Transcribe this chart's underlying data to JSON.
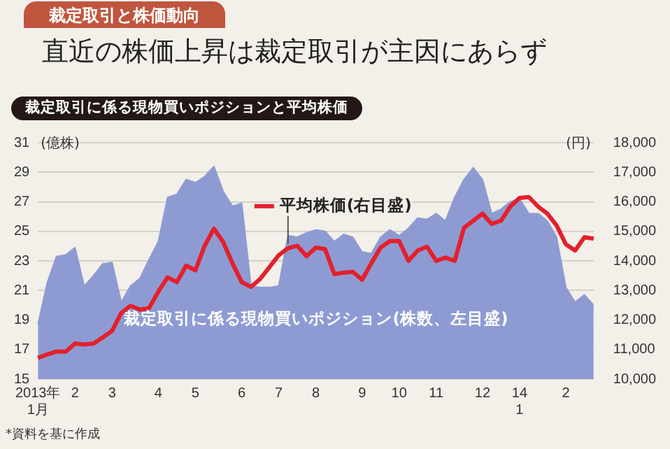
{
  "chart_data": {
    "type": "area",
    "title": "直近の株価上昇は裁定取引が主因にあらず",
    "subtitle": "裁定取引に係る現物買いポジションと平均株価",
    "ylabel": "(億株)",
    "y2label": "(円)",
    "annotations": [
      "裁定取引と株価動向",
      "*資料を基に作成"
    ],
    "categories": [
      "2013年\n1月",
      null,
      null,
      null,
      "2",
      null,
      null,
      null,
      "3",
      null,
      null,
      null,
      null,
      "4",
      null,
      null,
      null,
      "5",
      null,
      null,
      null,
      null,
      "6",
      null,
      null,
      null,
      "7",
      null,
      null,
      null,
      "8",
      null,
      null,
      null,
      null,
      "9",
      null,
      null,
      null,
      "10",
      null,
      null,
      null,
      "11",
      null,
      null,
      null,
      null,
      "12",
      null,
      null,
      null,
      "14\n1",
      null,
      null,
      null,
      null,
      "2",
      null,
      null,
      null
    ],
    "series": [
      {
        "name": "裁定取引に係る現物買いポジション(株数、左目盛)",
        "color": "#8e9bd3",
        "values": [
          18.7,
          21.5,
          23.3,
          23.4,
          23.9,
          21.3,
          22.0,
          22.8,
          22.9,
          20.2,
          21.3,
          21.8,
          23.1,
          24.3,
          27.3,
          27.5,
          28.5,
          28.3,
          28.7,
          29.4,
          27.7,
          26.7,
          26.9,
          21.3,
          21.2,
          21.2,
          21.3,
          24.7,
          24.6,
          24.9,
          25.1,
          25.0,
          24.3,
          24.8,
          24.6,
          23.6,
          23.5,
          24.6,
          25.1,
          24.7,
          25.2,
          25.9,
          25.8,
          26.2,
          25.7,
          27.3,
          28.5,
          29.3,
          28.5,
          26.2,
          26.5,
          27.0,
          27.2,
          26.2,
          26.2,
          25.7,
          24.6,
          21.2,
          20.2,
          20.7,
          20.0
        ]
      },
      {
        "name": "平均株価(右目盛)",
        "type": "line",
        "axis": "y2",
        "color": "#e3202c",
        "values": [
          10720,
          10830,
          10930,
          10930,
          11200,
          11170,
          11200,
          11410,
          11630,
          12240,
          12480,
          12350,
          12400,
          12960,
          13440,
          13280,
          13840,
          13680,
          14510,
          15090,
          14640,
          13920,
          13280,
          13120,
          13390,
          13790,
          14190,
          14430,
          14510,
          14160,
          14450,
          14400,
          13550,
          13600,
          13630,
          13360,
          13920,
          14450,
          14670,
          14670,
          14000,
          14350,
          14480,
          14000,
          14110,
          14000,
          15120,
          15360,
          15600,
          15250,
          15360,
          15840,
          16130,
          16160,
          15840,
          15600,
          15200,
          14560,
          14350,
          14800,
          14750
        ]
      }
    ],
    "ylim": [
      15,
      31
    ],
    "yticks": [
      15,
      17,
      19,
      21,
      23,
      25,
      27,
      29,
      31
    ],
    "y2lim": [
      10000,
      18000
    ],
    "y2ticks": [
      {
        "value": 10000,
        "label": "10,000"
      },
      {
        "value": 11000,
        "label": "11,000"
      },
      {
        "value": 12000,
        "label": "12,000"
      },
      {
        "value": 13000,
        "label": "13,000"
      },
      {
        "value": 14000,
        "label": "14,000"
      },
      {
        "value": 15000,
        "label": "15,000"
      },
      {
        "value": 16000,
        "label": "16,000"
      },
      {
        "value": 17000,
        "label": "17,000"
      },
      {
        "value": 18000,
        "label": "18,000"
      }
    ],
    "grid": "y",
    "marker": "none",
    "line_style": "solid"
  }
}
